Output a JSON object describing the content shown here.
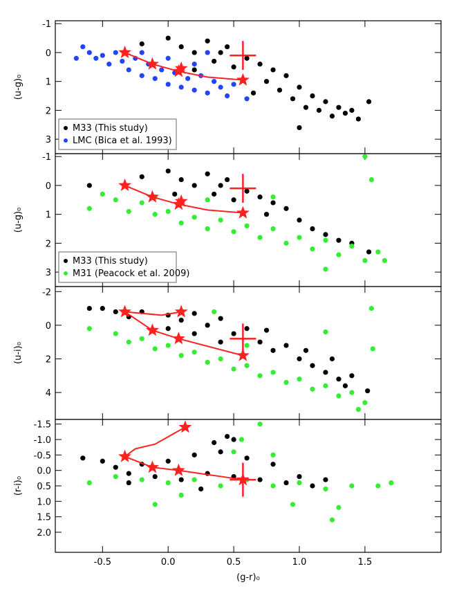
{
  "chart_data": [
    {
      "type": "scatter",
      "ylabel": "(u-g)₀",
      "ylim": [
        -1.1,
        3.5
      ],
      "y_inverted": true,
      "yticks": [
        -1,
        0,
        1,
        2,
        3
      ],
      "legend": "lower left",
      "series": [
        {
          "name": "M33 (This study)",
          "color": "#000000",
          "x": [
            -0.2,
            0.0,
            0.1,
            0.2,
            0.3,
            0.35,
            0.4,
            0.5,
            0.6,
            0.7,
            0.75,
            0.8,
            0.85,
            0.9,
            0.95,
            1.0,
            1.05,
            1.1,
            1.15,
            1.2,
            1.25,
            1.3,
            1.35,
            1.4,
            1.53,
            1.45,
            0.2,
            0.45,
            1.0,
            0.65
          ],
          "y": [
            -0.3,
            -0.5,
            -0.2,
            0.0,
            -0.4,
            0.3,
            0.0,
            0.5,
            0.2,
            0.4,
            1.0,
            0.6,
            1.3,
            0.8,
            1.6,
            1.2,
            1.9,
            1.5,
            2.0,
            1.7,
            2.2,
            1.9,
            2.1,
            2.0,
            1.7,
            2.3,
            0.6,
            -0.2,
            2.6,
            1.4
          ]
        },
        {
          "name": "LMC (Bica et al. 1993)",
          "color": "#2244ff",
          "x": [
            -0.7,
            -0.65,
            -0.6,
            -0.55,
            -0.5,
            -0.45,
            -0.4,
            -0.35,
            -0.3,
            -0.25,
            -0.2,
            -0.15,
            -0.1,
            -0.05,
            0.0,
            0.05,
            0.1,
            0.15,
            0.2,
            0.25,
            0.3,
            0.35,
            0.4,
            0.45,
            0.5,
            0.6,
            0.0,
            -0.2,
            0.2,
            0.3
          ],
          "y": [
            0.2,
            -0.2,
            0.0,
            0.2,
            0.1,
            0.4,
            0.0,
            0.3,
            0.6,
            0.2,
            0.8,
            0.4,
            0.9,
            0.6,
            1.1,
            0.7,
            1.2,
            0.9,
            1.3,
            0.8,
            1.4,
            1.0,
            1.2,
            1.5,
            1.1,
            1.6,
            0.2,
            0.0,
            0.4,
            0.0
          ]
        }
      ],
      "track": {
        "x": [
          -0.33,
          -0.12,
          0.08,
          0.3,
          0.57
        ],
        "y": [
          0.0,
          0.4,
          0.65,
          0.85,
          0.95
        ]
      },
      "stars": {
        "x": [
          -0.33,
          -0.12,
          0.08,
          0.1,
          0.57
        ],
        "y": [
          0.0,
          0.4,
          0.65,
          0.55,
          0.95
        ]
      },
      "error_bar": {
        "x": 0.57,
        "y": 0.1,
        "xerr": 0.1,
        "yerr": 0.5
      }
    },
    {
      "type": "scatter",
      "ylabel": "(u-g)₀",
      "ylim": [
        -1.1,
        3.5
      ],
      "y_inverted": true,
      "yticks": [
        -1,
        0,
        1,
        2,
        3
      ],
      "legend": "lower left",
      "series": [
        {
          "name": "M33 (This study)",
          "color": "#000000",
          "x": [
            -0.6,
            -0.2,
            0.0,
            0.1,
            0.2,
            0.3,
            0.35,
            0.4,
            0.5,
            0.6,
            0.7,
            0.75,
            0.8,
            0.9,
            1.0,
            1.1,
            1.2,
            1.3,
            1.4,
            1.53,
            0.45,
            0.05
          ],
          "y": [
            0.0,
            -0.3,
            -0.5,
            -0.2,
            0.0,
            -0.4,
            0.3,
            0.0,
            0.5,
            0.2,
            0.4,
            1.0,
            0.6,
            0.8,
            1.2,
            1.5,
            1.7,
            1.9,
            2.0,
            2.3,
            -0.2,
            0.3
          ]
        },
        {
          "name": "M31 (Peacock et al. 2009)",
          "color": "#33ee33",
          "x": [
            -0.6,
            -0.5,
            -0.4,
            -0.3,
            -0.2,
            -0.1,
            0.0,
            0.1,
            0.2,
            0.3,
            0.4,
            0.5,
            0.6,
            0.7,
            0.8,
            0.9,
            1.0,
            1.1,
            1.2,
            1.3,
            1.4,
            1.5,
            1.6,
            1.65,
            1.55,
            1.5,
            0.8,
            1.2,
            0.3,
            -0.1
          ],
          "y": [
            0.8,
            0.3,
            0.5,
            0.9,
            0.6,
            1.0,
            0.9,
            1.3,
            1.1,
            1.5,
            1.2,
            1.6,
            1.4,
            1.8,
            1.5,
            2.0,
            1.8,
            2.2,
            1.9,
            2.4,
            2.1,
            2.6,
            2.3,
            2.6,
            -0.2,
            -1.0,
            0.4,
            2.9,
            0.5,
            0.4
          ]
        }
      ],
      "track": {
        "x": [
          -0.33,
          -0.12,
          0.08,
          0.3,
          0.57
        ],
        "y": [
          0.0,
          0.4,
          0.65,
          0.85,
          0.95
        ]
      },
      "stars": {
        "x": [
          -0.33,
          -0.12,
          0.08,
          0.1,
          0.57
        ],
        "y": [
          0.0,
          0.4,
          0.65,
          0.55,
          0.95
        ]
      },
      "error_bar": {
        "x": 0.57,
        "y": 0.1,
        "xerr": 0.1,
        "yerr": 0.5
      }
    },
    {
      "type": "scatter",
      "ylabel": "(u-i)₀",
      "ylim": [
        -2.3,
        5.6
      ],
      "y_inverted": true,
      "yticks": [
        -2,
        0,
        2,
        4
      ],
      "series": [
        {
          "color": "#000000",
          "x": [
            -0.6,
            -0.5,
            -0.4,
            -0.3,
            -0.2,
            0.0,
            0.1,
            0.2,
            0.3,
            0.4,
            0.5,
            0.6,
            0.7,
            0.75,
            0.8,
            0.9,
            1.0,
            1.05,
            1.1,
            1.2,
            1.25,
            1.3,
            1.35,
            1.4,
            1.52,
            0.2,
            0.4,
            0.0
          ],
          "y": [
            -1.0,
            -1.0,
            -0.8,
            -0.5,
            -0.8,
            -0.6,
            -0.3,
            -0.7,
            0.0,
            -0.4,
            0.5,
            0.2,
            1.0,
            0.3,
            1.5,
            1.2,
            2.0,
            1.5,
            2.4,
            2.8,
            2.0,
            3.2,
            3.6,
            3.0,
            3.9,
            0.5,
            1.0,
            0.2
          ]
        },
        {
          "color": "#33ee33",
          "x": [
            -0.6,
            -0.4,
            -0.3,
            -0.2,
            -0.1,
            0.0,
            0.1,
            0.2,
            0.3,
            0.4,
            0.5,
            0.6,
            0.7,
            0.8,
            0.9,
            1.0,
            1.1,
            1.2,
            1.3,
            1.4,
            1.5,
            1.45,
            1.55,
            1.56,
            0.35,
            0.6,
            1.2
          ],
          "y": [
            0.2,
            0.5,
            1.0,
            0.8,
            1.4,
            1.2,
            1.8,
            1.6,
            2.2,
            2.0,
            2.6,
            2.4,
            3.0,
            2.8,
            3.4,
            3.2,
            3.8,
            3.6,
            4.2,
            4.0,
            4.6,
            5.0,
            -1.0,
            1.4,
            -0.8,
            1.2,
            0.4
          ]
        }
      ],
      "track": {
        "x": [
          0.1,
          -0.05,
          -0.33,
          -0.12,
          0.08,
          0.57
        ],
        "y": [
          -0.8,
          -0.6,
          -0.8,
          0.3,
          0.8,
          1.8
        ]
      },
      "stars": {
        "x": [
          -0.33,
          0.1,
          -0.12,
          0.08,
          0.57
        ],
        "y": [
          -0.8,
          -0.8,
          0.3,
          0.8,
          1.8
        ]
      },
      "error_bar": {
        "x": 0.57,
        "y": 0.8,
        "xerr": 0.1,
        "yerr": 0.9
      }
    },
    {
      "type": "scatter",
      "ylabel": "(r-i)₀",
      "xlabel": "(g-r)₀",
      "xlim": [
        -0.86,
        2.08
      ],
      "xticks": [
        -0.5,
        {
          "value": 0,
          "label": "0.0"
        },
        0.5,
        {
          "value": 1,
          "label": "1.0"
        },
        1.5
      ],
      "ylim": [
        -1.65,
        2.65
      ],
      "y_inverted": true,
      "yticks": [
        -1.5,
        {
          "value": -1,
          "label": "-1.0"
        },
        -0.5,
        {
          "value": 0,
          "label": "0.0"
        },
        0.5,
        {
          "value": 1,
          "label": "1.0"
        },
        1.5,
        {
          "value": 2,
          "label": "2.0"
        }
      ],
      "series": [
        {
          "color": "#000000",
          "x": [
            -0.65,
            -0.5,
            -0.4,
            -0.3,
            -0.2,
            -0.1,
            0.0,
            0.1,
            0.2,
            0.3,
            0.35,
            0.4,
            0.5,
            0.5,
            0.6,
            0.7,
            0.8,
            0.9,
            1.0,
            1.1,
            1.2,
            0.25,
            -0.3,
            0.45
          ],
          "y": [
            -0.4,
            -0.3,
            -0.1,
            0.1,
            -0.2,
            0.2,
            -0.3,
            0.3,
            -0.5,
            0.1,
            -0.9,
            -0.6,
            0.2,
            -1.0,
            -0.4,
            0.3,
            -0.2,
            0.4,
            0.2,
            0.5,
            0.3,
            0.6,
            0.4,
            -1.1
          ]
        },
        {
          "color": "#33ee33",
          "x": [
            -0.6,
            -0.4,
            -0.2,
            0.0,
            0.2,
            0.4,
            0.6,
            0.8,
            1.0,
            1.2,
            1.4,
            1.6,
            1.7,
            -0.1,
            1.25,
            0.95,
            0.56,
            0.7,
            0.8,
            0.1,
            1.3,
            0.5
          ],
          "y": [
            0.4,
            0.2,
            0.3,
            0.4,
            0.3,
            0.5,
            0.3,
            0.5,
            0.4,
            0.6,
            0.5,
            0.5,
            0.4,
            1.1,
            1.6,
            1.1,
            -1.0,
            -1.5,
            -0.5,
            0.8,
            1.2,
            -0.6
          ]
        }
      ],
      "track": {
        "x": [
          0.13,
          -0.1,
          -0.25,
          -0.33,
          -0.12,
          0.08,
          0.57
        ],
        "y": [
          -1.4,
          -0.85,
          -0.7,
          -0.45,
          -0.1,
          0.0,
          0.3
        ]
      },
      "stars": {
        "x": [
          -0.33,
          -0.12,
          0.08,
          0.57,
          0.13
        ],
        "y": [
          -0.45,
          -0.1,
          0.0,
          0.3,
          -1.4
        ]
      },
      "error_bar": {
        "x": 0.57,
        "y": 0.3,
        "xerr": 0.1,
        "yerr": 0.55
      }
    }
  ]
}
